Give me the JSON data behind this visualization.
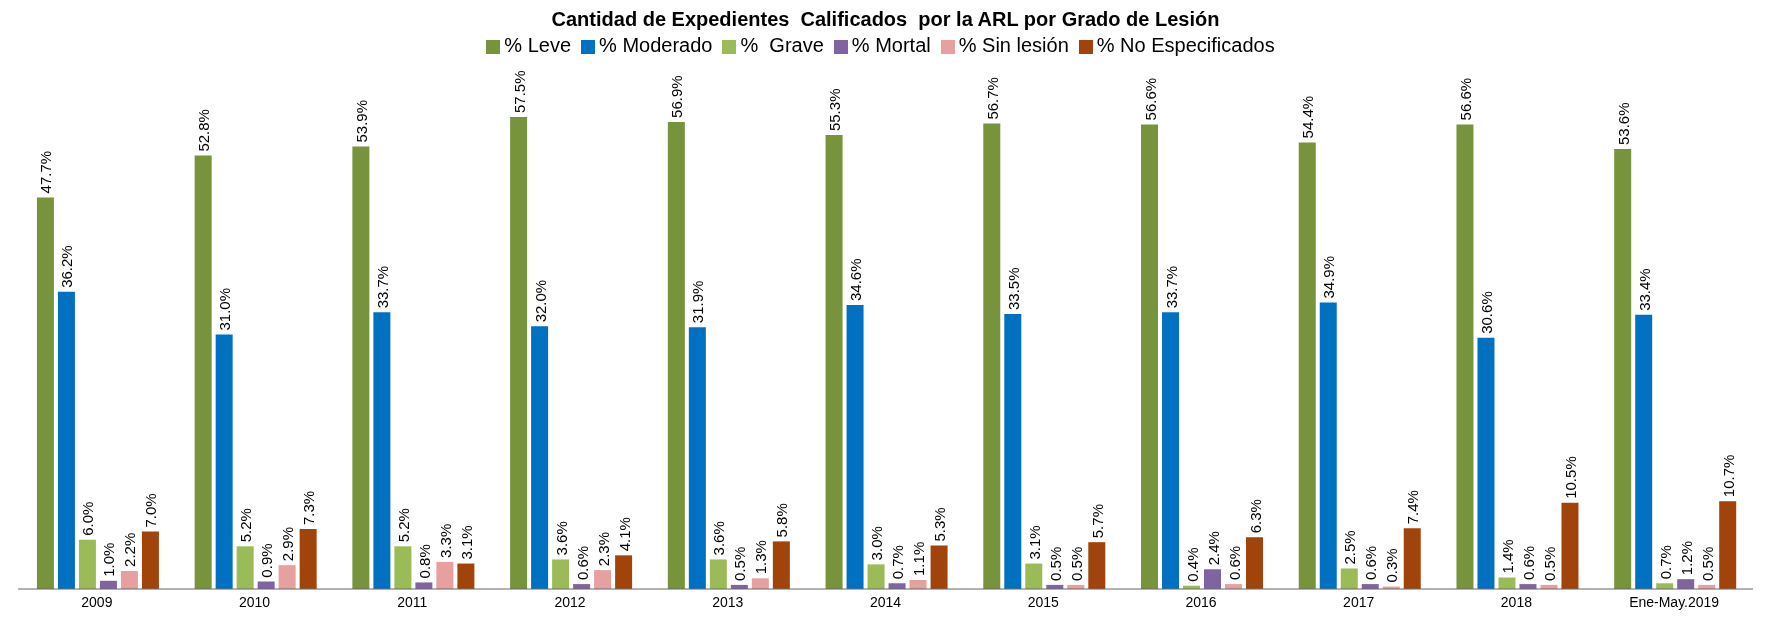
{
  "chart_data": {
    "type": "bar",
    "title": "Cantidad de Expedientes  Calificados  por la ARL por Grado de Lesión",
    "categories": [
      "2009",
      "2010",
      "2011",
      "2012",
      "2013",
      "2014",
      "2015",
      "2016",
      "2017",
      "2018",
      "Ene-May.2019"
    ],
    "legend": "top",
    "grid": false,
    "series": [
      {
        "name": "% Leve",
        "color": "#77933c",
        "values": [
          47.7,
          52.8,
          53.9,
          57.5,
          56.9,
          55.3,
          56.7,
          56.6,
          54.4,
          56.6,
          53.6
        ],
        "value_labels": [
          "47.7%",
          "52.8%",
          "53.9%",
          "57.5%",
          "56.9%",
          "55.3%",
          "56.7%",
          "56.6%",
          "54.4%",
          "56.6%",
          "53.6%"
        ]
      },
      {
        "name": "% Moderado",
        "color": "#0070c0",
        "values": [
          36.2,
          31.0,
          33.7,
          32.0,
          31.9,
          34.6,
          33.5,
          33.7,
          34.9,
          30.6,
          33.4
        ],
        "value_labels": [
          "36.2%",
          "31.0%",
          "33.7%",
          "32.0%",
          "31.9%",
          "34.6%",
          "33.5%",
          "33.7%",
          "34.9%",
          "30.6%",
          "33.4%"
        ]
      },
      {
        "name": "%  Grave",
        "color": "#9bbb59",
        "values": [
          6.0,
          5.2,
          5.2,
          3.6,
          3.6,
          3.0,
          3.1,
          0.4,
          2.5,
          1.4,
          0.7
        ],
        "value_labels": [
          "6.0%",
          "5.2%",
          "5.2%",
          "3.6%",
          "3.6%",
          "3.0%",
          "3.1%",
          "0.4%",
          "2.5%",
          "1.4%",
          "0.7%"
        ]
      },
      {
        "name": "% Mortal",
        "color": "#8064a2",
        "values": [
          1.0,
          0.9,
          0.8,
          0.6,
          0.5,
          0.7,
          0.5,
          2.4,
          0.6,
          0.6,
          1.2
        ],
        "value_labels": [
          "1.0%",
          "0.9%",
          "0.8%",
          "0.6%",
          "0.5%",
          "0.7%",
          "0.5%",
          "2.4%",
          "0.6%",
          "0.6%",
          "1.2%"
        ]
      },
      {
        "name": "% Sin lesión",
        "color": "#e6a0a0",
        "values": [
          2.2,
          2.9,
          3.3,
          2.3,
          1.3,
          1.1,
          0.5,
          0.6,
          0.3,
          0.5,
          0.5
        ],
        "value_labels": [
          "2.2%",
          "2.9%",
          "3.3%",
          "2.3%",
          "1.3%",
          "1.1%",
          "0.5%",
          "0.6%",
          "0.3%",
          "0.5%",
          "0.5%"
        ]
      },
      {
        "name": "% No Especificados",
        "color": "#a0440c",
        "values": [
          7.0,
          7.3,
          3.1,
          4.1,
          5.8,
          5.3,
          5.7,
          6.3,
          7.4,
          10.5,
          10.7
        ],
        "value_labels": [
          "7.0%",
          "7.3%",
          "3.1%",
          "4.1%",
          "5.8%",
          "5.3%",
          "5.7%",
          "6.3%",
          "7.4%",
          "10.5%",
          "10.7%"
        ]
      }
    ]
  }
}
